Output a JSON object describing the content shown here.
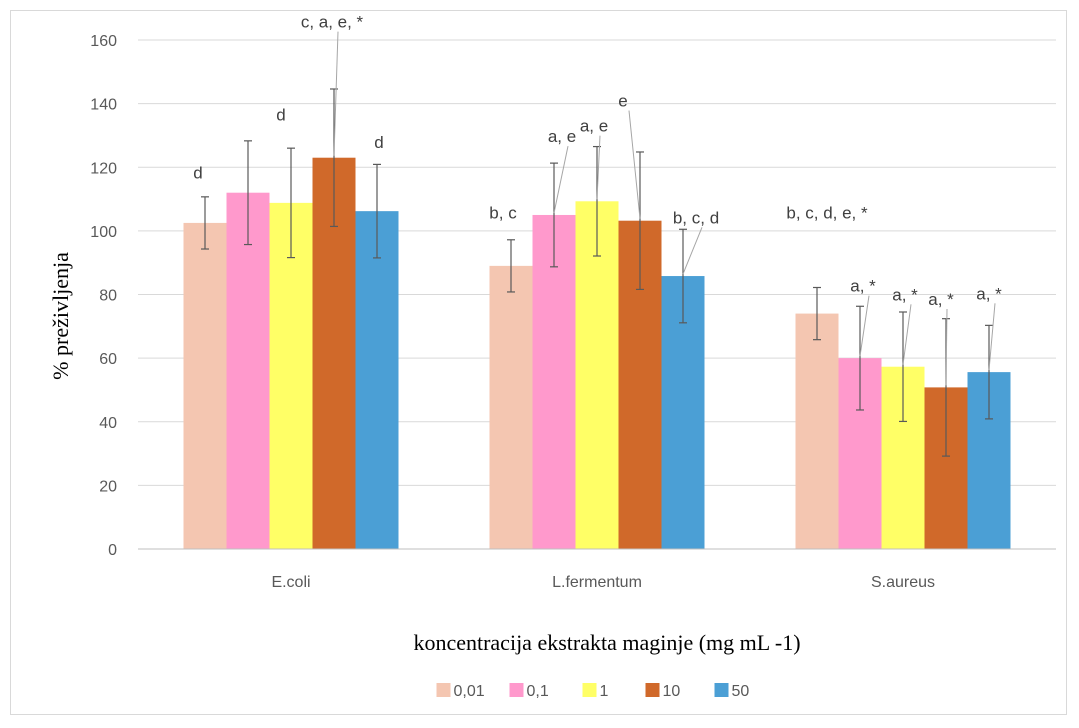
{
  "chart_data": {
    "type": "bar",
    "xlabel": "koncentracija ekstrakta maginje (mg mL -1)",
    "ylabel": "% preživljenja",
    "ylim": [
      0,
      160
    ],
    "yticks": [
      0,
      20,
      40,
      60,
      80,
      100,
      120,
      140,
      160
    ],
    "grid": true,
    "legend_position": "bottom",
    "categories": [
      "E.coli",
      "L.fermentum",
      "S.aureus"
    ],
    "series": [
      {
        "name": "0,01",
        "color": "#F4C6B1",
        "values": [
          102.5,
          89,
          74
        ],
        "errors": [
          8.2,
          8.2,
          8.2
        ],
        "labels": [
          "d",
          "b, c",
          "b, c, d, e, *"
        ]
      },
      {
        "name": "0,1",
        "color": "#FF99CC",
        "values": [
          112,
          105,
          60
        ],
        "errors": [
          16.3,
          16.3,
          16.3
        ],
        "labels": [
          "",
          "a, e",
          "a, *"
        ]
      },
      {
        "name": "1",
        "color": "#FFFF66",
        "values": [
          108.8,
          109.3,
          57.3
        ],
        "errors": [
          17.2,
          17.2,
          17.2
        ],
        "labels": [
          "d",
          "a, e",
          "a, *"
        ]
      },
      {
        "name": "10",
        "color": "#D0692A",
        "values": [
          123,
          103.2,
          50.8
        ],
        "errors": [
          21.6,
          21.6,
          21.6
        ],
        "labels": [
          "c, a, e, *",
          "e",
          "a, *"
        ]
      },
      {
        "name": "50",
        "color": "#4B9FD5",
        "values": [
          106.2,
          85.8,
          55.6
        ],
        "errors": [
          14.7,
          14.7,
          14.7
        ],
        "labels": [
          "d",
          "b, c, d",
          "a, *"
        ]
      }
    ]
  }
}
